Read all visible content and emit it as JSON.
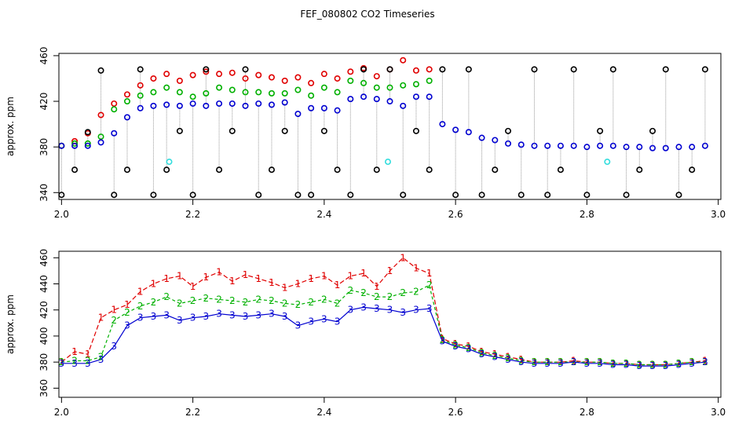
{
  "chart_data": {
    "type": "scatter",
    "title": "FEF_080802  CO2 Timeseries",
    "colors": {
      "ch1": "#e00000",
      "ch2": "#00b000",
      "ch3": "#0000d0",
      "ref": "#000000",
      "flag": "#33dddd",
      "guide": "#999999"
    },
    "panels": [
      {
        "id": "top",
        "ylabel": "approx. ppm",
        "xlim": [
          1.996,
          3.004
        ],
        "ylim": [
          334,
          462
        ],
        "x_ticks": [
          "2.0",
          "2.2",
          "2.4",
          "2.6",
          "2.8",
          "3.0"
        ],
        "y_ticks": [
          "340",
          "380",
          "420",
          "460"
        ],
        "style": "circles",
        "series": [
          {
            "name": "1",
            "x": [
              2.0,
              2.02,
              2.04,
              2.06,
              2.08,
              2.1,
              2.12,
              2.14,
              2.16,
              2.18,
              2.2,
              2.22,
              2.24,
              2.26,
              2.28,
              2.3,
              2.32,
              2.34,
              2.36,
              2.38,
              2.4,
              2.42,
              2.44,
              2.46,
              2.48,
              2.5,
              2.52,
              2.54,
              2.56
            ],
            "y": [
              381,
              385,
              392,
              408,
              418,
              426,
              434,
              440,
              444,
              438,
              443,
              446,
              444,
              445,
              440,
              443,
              441,
              438,
              441,
              436,
              444,
              440,
              446,
              449,
              442,
              448,
              456,
              447,
              448
            ]
          },
          {
            "name": "2",
            "x": [
              2.0,
              2.02,
              2.04,
              2.06,
              2.08,
              2.1,
              2.12,
              2.14,
              2.16,
              2.18,
              2.2,
              2.22,
              2.24,
              2.26,
              2.28,
              2.3,
              2.32,
              2.34,
              2.36,
              2.38,
              2.4,
              2.42,
              2.44,
              2.46,
              2.48,
              2.5,
              2.52,
              2.54,
              2.56
            ],
            "y": [
              381,
              383,
              383,
              389,
              413,
              420,
              425,
              428,
              432,
              428,
              424,
              427,
              432,
              430,
              428,
              428,
              427,
              427,
              430,
              425,
              432,
              428,
              438,
              436,
              432,
              432,
              434,
              435,
              438
            ]
          },
          {
            "name": "3",
            "x": [
              2.0,
              2.02,
              2.04,
              2.06,
              2.08,
              2.1,
              2.12,
              2.14,
              2.16,
              2.18,
              2.2,
              2.22,
              2.24,
              2.26,
              2.28,
              2.3,
              2.32,
              2.34,
              2.36,
              2.38,
              2.4,
              2.42,
              2.44,
              2.46,
              2.48,
              2.5,
              2.52,
              2.54,
              2.56,
              2.58,
              2.6,
              2.62,
              2.64,
              2.66,
              2.68,
              2.7,
              2.72,
              2.74,
              2.76,
              2.78,
              2.8,
              2.82,
              2.84,
              2.86,
              2.88,
              2.9,
              2.92,
              2.94,
              2.96,
              2.98
            ],
            "y": [
              381,
              381,
              381,
              384,
              392,
              406,
              414,
              416,
              417,
              416,
              418,
              416,
              418,
              418,
              416,
              418,
              417,
              419,
              409,
              414,
              414,
              412,
              422,
              424,
              422,
              420,
              416,
              424,
              424,
              400,
              395,
              393,
              388,
              386,
              383,
              382,
              381,
              381,
              381,
              381,
              380,
              381,
              381,
              380,
              380,
              379,
              379,
              380,
              380,
              381
            ]
          },
          {
            "name": "ref",
            "x": [
              2.0,
              2.02,
              2.04,
              2.06,
              2.08,
              2.1,
              2.12,
              2.14,
              2.16,
              2.18,
              2.2,
              2.22,
              2.24,
              2.26,
              2.28,
              2.3,
              2.32,
              2.34,
              2.36,
              2.38,
              2.4,
              2.42,
              2.44,
              2.46,
              2.48,
              2.5,
              2.52,
              2.54,
              2.56,
              2.58,
              2.6,
              2.62,
              2.64,
              2.66,
              2.68,
              2.7,
              2.72,
              2.74,
              2.76,
              2.78,
              2.8,
              2.82,
              2.84,
              2.86,
              2.88,
              2.9,
              2.92,
              2.94,
              2.96,
              2.98
            ],
            "y": [
              338,
              360,
              393,
              447,
              338,
              360,
              448,
              338,
              360,
              394,
              338,
              448,
              360,
              394,
              448,
              338,
              360,
              394,
              338,
              338,
              394,
              360,
              338,
              448,
              360,
              448,
              338,
              394,
              360,
              448,
              338,
              448,
              338,
              360,
              394,
              338,
              448,
              338,
              360,
              448,
              338,
              394,
              448,
              338,
              360,
              394,
              448,
              338,
              360,
              448
            ]
          },
          {
            "name": "flag",
            "x": [
              2.164,
              2.497,
              2.831
            ],
            "y": [
              367,
              367,
              367
            ]
          }
        ]
      },
      {
        "id": "bottom",
        "ylabel": "approx. ppm",
        "xlim": [
          1.996,
          3.004
        ],
        "ylim": [
          353,
          465
        ],
        "x_ticks": [
          "2.0",
          "2.2",
          "2.4",
          "2.6",
          "2.8",
          "3.0"
        ],
        "y_ticks": [
          "360",
          "380",
          "400",
          "420",
          "440",
          "460"
        ],
        "style": "numbers",
        "series": [
          {
            "name": "1",
            "x": [
              2.0,
              2.02,
              2.04,
              2.06,
              2.08,
              2.1,
              2.12,
              2.14,
              2.16,
              2.18,
              2.2,
              2.22,
              2.24,
              2.26,
              2.28,
              2.3,
              2.32,
              2.34,
              2.36,
              2.38,
              2.4,
              2.42,
              2.44,
              2.46,
              2.48,
              2.5,
              2.52,
              2.54,
              2.56,
              2.58,
              2.6,
              2.62,
              2.64,
              2.66,
              2.68,
              2.7,
              2.72,
              2.74,
              2.76,
              2.78,
              2.8,
              2.82,
              2.84,
              2.86,
              2.88,
              2.9,
              2.92,
              2.94,
              2.96,
              2.98
            ],
            "y": [
              380,
              388,
              386,
              414,
              420,
              424,
              434,
              440,
              444,
              446,
              438,
              445,
              449,
              442,
              447,
              444,
              441,
              437,
              440,
              444,
              446,
              439,
              446,
              448,
              438,
              450,
              460,
              452,
              448,
              398,
              394,
              392,
              388,
              386,
              384,
              382,
              380,
              380,
              380,
              381,
              380,
              380,
              379,
              379,
              378,
              378,
              378,
              379,
              380,
              381
            ]
          },
          {
            "name": "2",
            "x": [
              2.0,
              2.02,
              2.04,
              2.06,
              2.08,
              2.1,
              2.12,
              2.14,
              2.16,
              2.18,
              2.2,
              2.22,
              2.24,
              2.26,
              2.28,
              2.3,
              2.32,
              2.34,
              2.36,
              2.38,
              2.4,
              2.42,
              2.44,
              2.46,
              2.48,
              2.5,
              2.52,
              2.54,
              2.56,
              2.58,
              2.6,
              2.62,
              2.64,
              2.66,
              2.68,
              2.7,
              2.72,
              2.74,
              2.76,
              2.78,
              2.8,
              2.82,
              2.84,
              2.86,
              2.88,
              2.9,
              2.92,
              2.94,
              2.96,
              2.98
            ],
            "y": [
              380,
              381,
              381,
              384,
              412,
              418,
              423,
              426,
              430,
              425,
              427,
              429,
              428,
              427,
              426,
              428,
              427,
              425,
              424,
              426,
              428,
              425,
              435,
              433,
              430,
              430,
              433,
              434,
              439,
              397,
              393,
              391,
              387,
              385,
              383,
              381,
              380,
              380,
              380,
              380,
              380,
              380,
              379,
              379,
              378,
              378,
              378,
              379,
              380,
              380
            ]
          },
          {
            "name": "3",
            "x": [
              2.0,
              2.02,
              2.04,
              2.06,
              2.08,
              2.1,
              2.12,
              2.14,
              2.16,
              2.18,
              2.2,
              2.22,
              2.24,
              2.26,
              2.28,
              2.3,
              2.32,
              2.34,
              2.36,
              2.38,
              2.4,
              2.42,
              2.44,
              2.46,
              2.48,
              2.5,
              2.52,
              2.54,
              2.56,
              2.58,
              2.6,
              2.62,
              2.64,
              2.66,
              2.68,
              2.7,
              2.72,
              2.74,
              2.76,
              2.78,
              2.8,
              2.82,
              2.84,
              2.86,
              2.88,
              2.9,
              2.92,
              2.94,
              2.96,
              2.98
            ],
            "y": [
              379,
              379,
              379,
              382,
              392,
              408,
              414,
              415,
              416,
              412,
              414,
              415,
              417,
              416,
              415,
              416,
              417,
              415,
              408,
              411,
              413,
              411,
              420,
              422,
              421,
              420,
              418,
              420,
              421,
              396,
              392,
              390,
              386,
              384,
              382,
              380,
              379,
              379,
              379,
              380,
              379,
              379,
              378,
              378,
              377,
              377,
              377,
              378,
              379,
              380
            ]
          }
        ]
      }
    ]
  }
}
